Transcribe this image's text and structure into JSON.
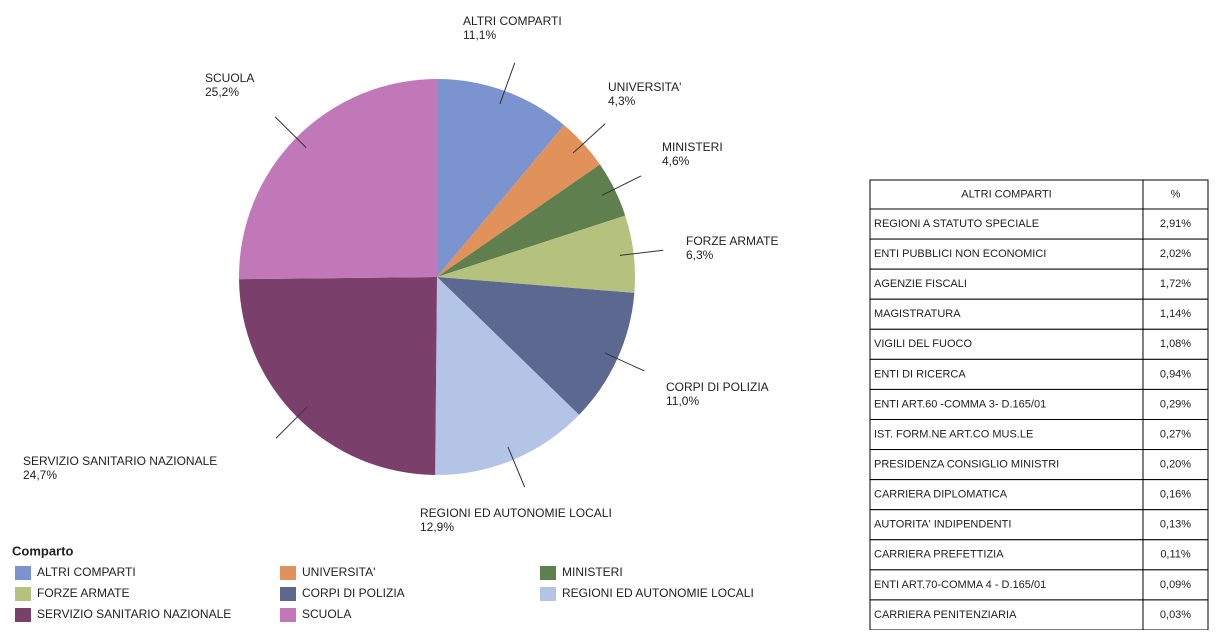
{
  "chart_data": {
    "type": "pie",
    "categories": [
      "ALTRI COMPARTI",
      "UNIVERSITA'",
      "MINISTERI",
      "FORZE ARMATE",
      "CORPI DI POLIZIA",
      "REGIONI ED AUTONOMIE LOCALI",
      "SERVIZIO SANITARIO NAZIONALE",
      "SCUOLA"
    ],
    "values": [
      11.1,
      4.3,
      4.6,
      6.3,
      11.0,
      12.9,
      24.7,
      25.2
    ],
    "value_labels": [
      "11,1%",
      "4,3%",
      "4,6%",
      "6,3%",
      "11,0%",
      "12,9%",
      "24,7%",
      "25,2%"
    ],
    "colors": [
      "#7b93cf",
      "#e0925a",
      "#5f7f4f",
      "#b5c27e",
      "#5d6890",
      "#b4c4e6",
      "#7a3f6a",
      "#c078b9"
    ],
    "legend_title": "Comparto"
  },
  "table": {
    "header": [
      "ALTRI COMPARTI",
      "%"
    ],
    "rows": [
      [
        "REGIONI A STATUTO SPECIALE",
        "2,91%"
      ],
      [
        "ENTI PUBBLICI NON ECONOMICI",
        "2,02%"
      ],
      [
        "AGENZIE FISCALI",
        "1,72%"
      ],
      [
        "MAGISTRATURA",
        "1,14%"
      ],
      [
        "VIGILI DEL FUOCO",
        "1,08%"
      ],
      [
        "ENTI DI RICERCA",
        "0,94%"
      ],
      [
        "ENTI ART.60 -COMMA 3- D.165/01",
        "0,29%"
      ],
      [
        "IST. FORM.NE ART.CO MUS.LE",
        "0,27%"
      ],
      [
        "PRESIDENZA CONSIGLIO MINISTRI",
        "0,20%"
      ],
      [
        "CARRIERA DIPLOMATICA",
        "0,16%"
      ],
      [
        "AUTORITA' INDIPENDENTI",
        "0,13%"
      ],
      [
        "CARRIERA PREFETTIZIA",
        "0,11%"
      ],
      [
        "ENTI ART.70-COMMA 4 - D.165/01",
        "0,09%"
      ],
      [
        "CARRIERA PENITENZIARIA",
        "0,03%"
      ]
    ]
  }
}
